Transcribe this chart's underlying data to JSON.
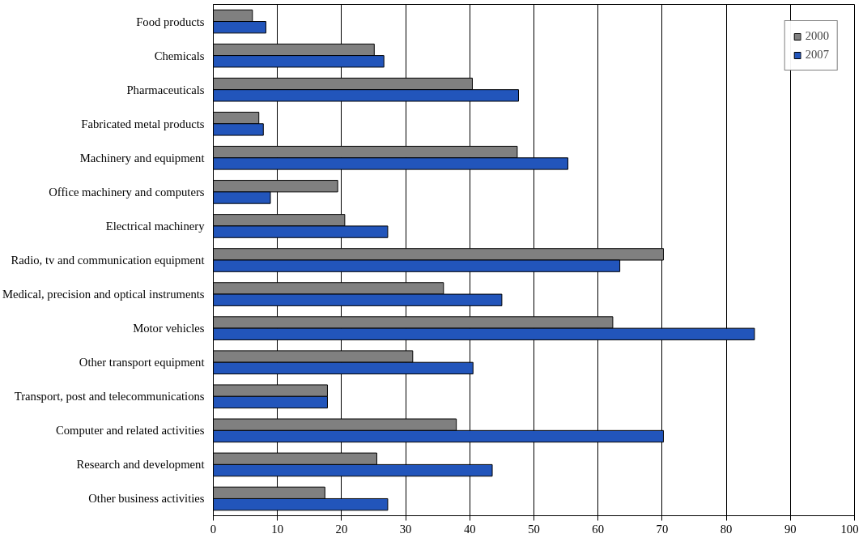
{
  "chart_data": {
    "type": "bar",
    "orientation": "horizontal",
    "categories": [
      "Food products",
      "Chemicals",
      "Pharmaceuticals",
      "Fabricated metal products",
      "Machinery and equipment",
      "Office machinery and computers",
      "Electrical machinery",
      "Radio, tv and communication equipment",
      "Medical, precision and optical instruments",
      "Motor vehicles",
      "Other transport equipment",
      "Transport, post and telecommunications",
      "Computer and related activities",
      "Research and development",
      "Other business activities"
    ],
    "series": [
      {
        "name": "2000",
        "color": "#808080",
        "values": [
          6.1,
          25.1,
          40.4,
          7.1,
          47.4,
          19.4,
          20.5,
          70.2,
          35.9,
          62.3,
          31.1,
          17.8,
          37.9,
          25.5,
          17.4
        ]
      },
      {
        "name": "2007",
        "color": "#2255bb",
        "values": [
          8.2,
          26.6,
          47.6,
          7.8,
          55.3,
          8.9,
          27.2,
          63.4,
          45.0,
          84.4,
          40.5,
          17.8,
          70.2,
          43.5,
          27.2
        ]
      }
    ],
    "xlim": [
      0,
      100
    ],
    "xticks": [
      0,
      10,
      20,
      30,
      40,
      50,
      60,
      70,
      80,
      90,
      100
    ],
    "grid": "x",
    "legend": "top right"
  }
}
